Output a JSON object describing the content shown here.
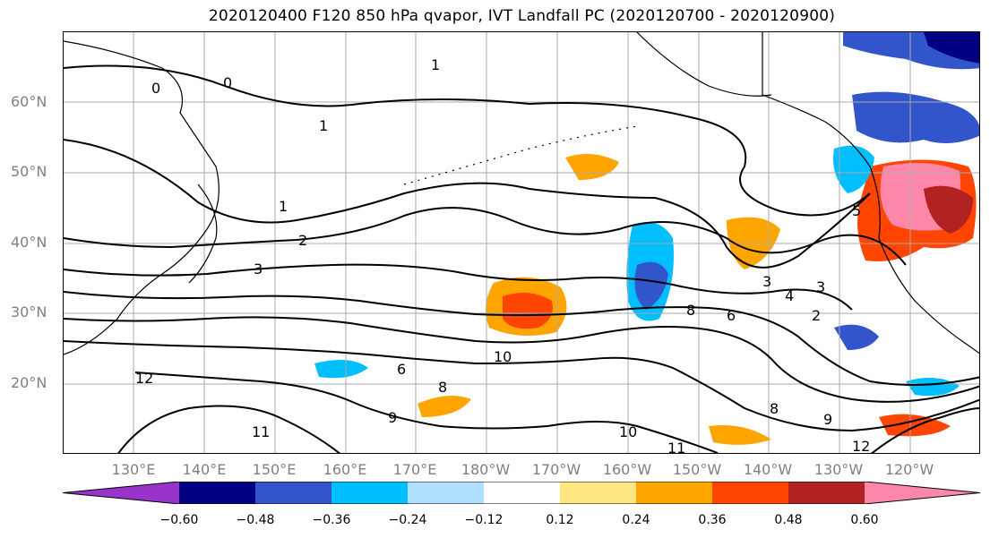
{
  "title": "2020120400 F120 850 hPa qvapor, IVT Landfall PC (2020120700 - 2020120900)",
  "lat_labels": [
    "60°N",
    "50°N",
    "40°N",
    "30°N",
    "20°N"
  ],
  "lon_labels": [
    "130°E",
    "140°E",
    "150°E",
    "160°E",
    "170°E",
    "180°W",
    "170°W",
    "160°W",
    "150°W",
    "140°W",
    "130°W",
    "120°W"
  ],
  "colorbar": {
    "colors": [
      "#9933cc",
      "#000080",
      "#3355cc",
      "#00bfff",
      "#b0e0ff",
      "#ffffff",
      "#ffe680",
      "#ffa500",
      "#ff4500",
      "#b22222",
      "#ff88aa"
    ],
    "tick_labels": [
      "−0.60",
      "−0.48",
      "−0.36",
      "−0.24",
      "−0.12",
      "0.12",
      "0.24",
      "0.36",
      "0.48",
      "0.60"
    ]
  },
  "contour_labels": [
    "0",
    "0",
    "1",
    "1",
    "1",
    "2",
    "2",
    "3",
    "3",
    "3",
    "4",
    "5",
    "6",
    "6",
    "8",
    "8",
    "8",
    "9",
    "9",
    "10",
    "10",
    "11",
    "11",
    "12",
    "12"
  ],
  "styles": {
    "coastline": "#000000",
    "contour": "#000000",
    "grid": "#aaaaaa"
  }
}
